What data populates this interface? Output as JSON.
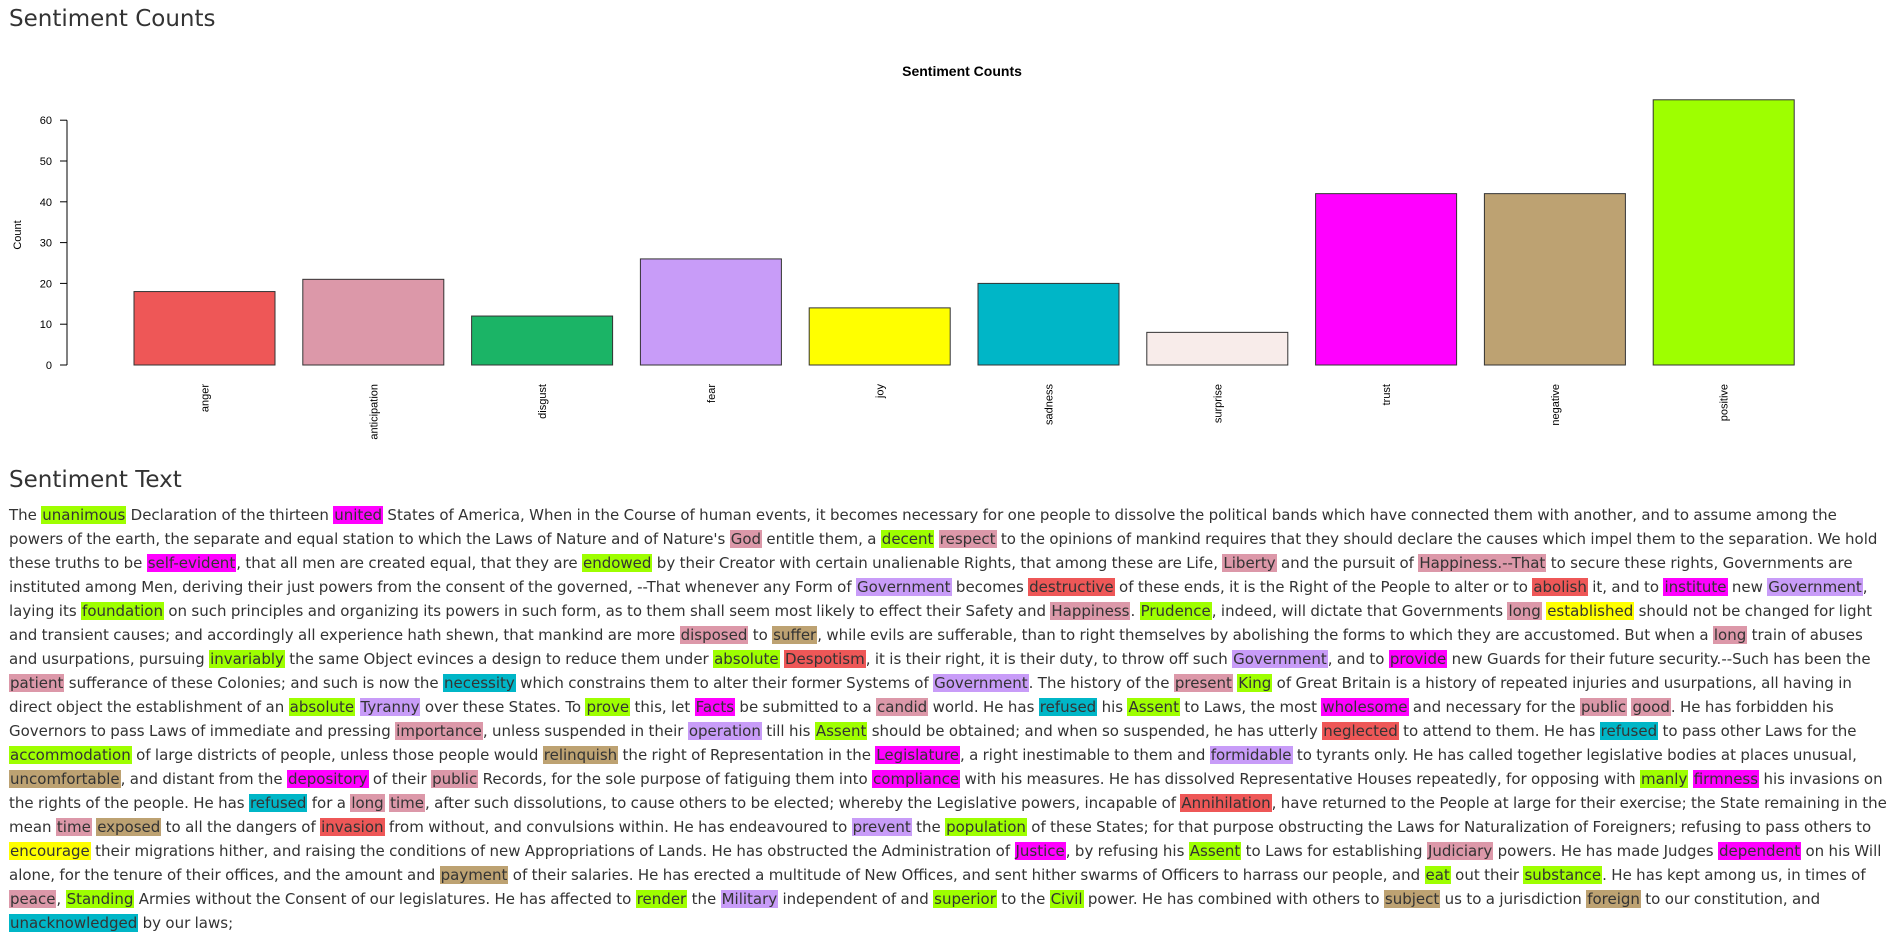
{
  "headings": {
    "counts": "Sentiment Counts",
    "text": "Sentiment Text"
  },
  "chart_data": {
    "type": "bar",
    "title": "Sentiment Counts",
    "xlabel": "",
    "ylabel": "Count",
    "ylim": [
      0,
      65
    ],
    "yticks": [
      0,
      10,
      20,
      30,
      40,
      50,
      60
    ],
    "categories": [
      "anger",
      "anticipation",
      "disgust",
      "fear",
      "joy",
      "sadness",
      "surprise",
      "trust",
      "negative",
      "positive"
    ],
    "values": [
      18,
      21,
      12,
      26,
      14,
      20,
      8,
      42,
      42,
      65
    ],
    "colors": [
      "#EE5757",
      "#DC98A9",
      "#1BB466",
      "#C89CF8",
      "#FFFF00",
      "#00B6C7",
      "#F8ECEA",
      "#FF00FF",
      "#BDA272",
      "#9EFF00"
    ],
    "grid": false,
    "legend": "none"
  },
  "sentiment_colors": {
    "anger": "#EE5757",
    "anticipation": "#DC98A9",
    "disgust": "#1BB466",
    "fear": "#C89CF8",
    "joy": "#FFFF00",
    "sadness": "#00B6C7",
    "surprise": "#F8ECEA",
    "trust": "#FF00FF",
    "negative": "#BDA272",
    "positive": "#9EFF00"
  },
  "text_tokens": [
    [
      "The ",
      ""
    ],
    [
      "unanimous",
      "positive"
    ],
    [
      " Declaration of the thirteen ",
      ""
    ],
    [
      "united",
      "trust"
    ],
    [
      " States of America, When in the Course of human events, it becomes necessary for one people to dissolve the political bands which have connected them with another, and to assume among the powers of the earth, the separate and equal station to which the Laws of Nature and of Nature's ",
      ""
    ],
    [
      "God",
      "anticipation"
    ],
    [
      " entitle them, a ",
      ""
    ],
    [
      "decent",
      "positive"
    ],
    [
      " ",
      ""
    ],
    [
      "respect",
      "anticipation"
    ],
    [
      " to the opinions of mankind requires that they should declare the causes which impel them to the separation. We hold these truths to be ",
      ""
    ],
    [
      "self-evident",
      "trust"
    ],
    [
      ", that all men are created equal, that they are ",
      ""
    ],
    [
      "endowed",
      "positive"
    ],
    [
      " by their Creator with certain unalienable Rights, that among these are Life, ",
      ""
    ],
    [
      "Liberty",
      "anticipation"
    ],
    [
      " and the pursuit of ",
      ""
    ],
    [
      "Happiness.--That",
      "anticipation"
    ],
    [
      " to secure these rights, Governments are instituted among Men, deriving their just powers from the consent of the governed, --That whenever any Form of ",
      ""
    ],
    [
      "Government",
      "fear"
    ],
    [
      " becomes ",
      ""
    ],
    [
      "destructive",
      "anger"
    ],
    [
      " of these ends, it is the Right of the People to alter or to ",
      ""
    ],
    [
      "abolish",
      "anger"
    ],
    [
      " it, and to ",
      ""
    ],
    [
      "institute",
      "trust"
    ],
    [
      " new ",
      ""
    ],
    [
      "Government",
      "fear"
    ],
    [
      ", laying its ",
      ""
    ],
    [
      "foundation",
      "positive"
    ],
    [
      " on such principles and organizing its powers in such form, as to them shall seem most likely to effect their Safety and ",
      ""
    ],
    [
      "Happiness",
      "anticipation"
    ],
    [
      ". ",
      ""
    ],
    [
      "Prudence",
      "positive"
    ],
    [
      ", indeed, will dictate that Governments ",
      ""
    ],
    [
      "long",
      "anticipation"
    ],
    [
      " ",
      ""
    ],
    [
      "established",
      "joy"
    ],
    [
      " should not be changed for light and transient causes; and accordingly all experience hath shewn, that mankind are more ",
      ""
    ],
    [
      "disposed",
      "anticipation"
    ],
    [
      " to ",
      ""
    ],
    [
      "suffer",
      "negative"
    ],
    [
      ", while evils are sufferable, than to right themselves by abolishing the forms to which they are accustomed. But when a ",
      ""
    ],
    [
      "long",
      "anticipation"
    ],
    [
      " train of abuses and usurpations, pursuing ",
      ""
    ],
    [
      "invariably",
      "positive"
    ],
    [
      " the same Object evinces a design to reduce them under ",
      ""
    ],
    [
      "absolute",
      "positive"
    ],
    [
      " ",
      ""
    ],
    [
      "Despotism",
      "anger"
    ],
    [
      ", it is their right, it is their duty, to throw off such ",
      ""
    ],
    [
      "Government",
      "fear"
    ],
    [
      ", and to ",
      ""
    ],
    [
      "provide",
      "trust"
    ],
    [
      " new Guards for their future security.--Such has been the ",
      ""
    ],
    [
      "patient",
      "anticipation"
    ],
    [
      " sufferance of these Colonies; and such is now the ",
      ""
    ],
    [
      "necessity",
      "sadness"
    ],
    [
      " which constrains them to alter their former Systems of ",
      ""
    ],
    [
      "Government",
      "fear"
    ],
    [
      ". The history of the ",
      ""
    ],
    [
      "present",
      "anticipation"
    ],
    [
      " ",
      ""
    ],
    [
      "King",
      "positive"
    ],
    [
      " of Great Britain is a history of repeated injuries and usurpations, all having in direct object the establishment of an ",
      ""
    ],
    [
      "absolute",
      "positive"
    ],
    [
      " ",
      ""
    ],
    [
      "Tyranny",
      "fear"
    ],
    [
      " over these States. To ",
      ""
    ],
    [
      "prove",
      "positive"
    ],
    [
      " this, let ",
      ""
    ],
    [
      "Facts",
      "trust"
    ],
    [
      " be submitted to a ",
      ""
    ],
    [
      "candid",
      "anticipation"
    ],
    [
      " world. He has ",
      ""
    ],
    [
      "refused",
      "sadness"
    ],
    [
      " his ",
      ""
    ],
    [
      "Assent",
      "positive"
    ],
    [
      " to Laws, the most ",
      ""
    ],
    [
      "wholesome",
      "trust"
    ],
    [
      " and necessary for the ",
      ""
    ],
    [
      "public",
      "anticipation"
    ],
    [
      " ",
      ""
    ],
    [
      "good",
      "anticipation"
    ],
    [
      ". He has forbidden his Governors to pass Laws of immediate and pressing ",
      ""
    ],
    [
      "importance",
      "anticipation"
    ],
    [
      ", unless suspended in their ",
      ""
    ],
    [
      "operation",
      "fear"
    ],
    [
      " till his ",
      ""
    ],
    [
      "Assent",
      "positive"
    ],
    [
      " should be obtained; and when so suspended, he has utterly ",
      ""
    ],
    [
      "neglected",
      "anger"
    ],
    [
      " to attend to them. He has ",
      ""
    ],
    [
      "refused",
      "sadness"
    ],
    [
      " to pass other Laws for the ",
      ""
    ],
    [
      "accommodation",
      "positive"
    ],
    [
      " of large districts of people, unless those people would ",
      ""
    ],
    [
      "relinquish",
      "negative"
    ],
    [
      " the right of Representation in the ",
      ""
    ],
    [
      "Legislature",
      "trust"
    ],
    [
      ", a right inestimable to them and ",
      ""
    ],
    [
      "formidable",
      "fear"
    ],
    [
      " to tyrants only. He has called together legislative bodies at places unusual, ",
      ""
    ],
    [
      "uncomfortable",
      "negative"
    ],
    [
      ", and distant from the ",
      ""
    ],
    [
      "depository",
      "trust"
    ],
    [
      " of their ",
      ""
    ],
    [
      "public",
      "anticipation"
    ],
    [
      " Records, for the sole purpose of fatiguing them into ",
      ""
    ],
    [
      "compliance",
      "trust"
    ],
    [
      " with his measures. He has dissolved Representative Houses repeatedly, for opposing with ",
      ""
    ],
    [
      "manly",
      "positive"
    ],
    [
      " ",
      ""
    ],
    [
      "firmness",
      "trust"
    ],
    [
      " his invasions on the rights of the people. He has ",
      ""
    ],
    [
      "refused",
      "sadness"
    ],
    [
      " for a ",
      ""
    ],
    [
      "long",
      "anticipation"
    ],
    [
      " ",
      ""
    ],
    [
      "time",
      "anticipation"
    ],
    [
      ", after such dissolutions, to cause others to be elected; whereby the Legislative powers, incapable of ",
      ""
    ],
    [
      "Annihilation",
      "anger"
    ],
    [
      ", have returned to the People at large for their exercise; the State remaining in the mean ",
      ""
    ],
    [
      "time",
      "anticipation"
    ],
    [
      " ",
      ""
    ],
    [
      "exposed",
      "negative"
    ],
    [
      " to all the dangers of ",
      ""
    ],
    [
      "invasion",
      "anger"
    ],
    [
      " from without, and convulsions within. He has endeavoured to ",
      ""
    ],
    [
      "prevent",
      "fear"
    ],
    [
      " the ",
      ""
    ],
    [
      "population",
      "positive"
    ],
    [
      " of these States; for that purpose obstructing the Laws for Naturalization of Foreigners; refusing to pass others to ",
      ""
    ],
    [
      "encourage",
      "joy"
    ],
    [
      " their migrations hither, and raising the conditions of new Appropriations of Lands. He has obstructed the Administration of ",
      ""
    ],
    [
      "Justice",
      "trust"
    ],
    [
      ", by refusing his ",
      ""
    ],
    [
      "Assent",
      "positive"
    ],
    [
      " to Laws for establishing ",
      ""
    ],
    [
      "Judiciary",
      "anticipation"
    ],
    [
      " powers. He has made Judges ",
      ""
    ],
    [
      "dependent",
      "trust"
    ],
    [
      " on his Will alone, for the tenure of their offices, and the amount and ",
      ""
    ],
    [
      "payment",
      "negative"
    ],
    [
      " of their salaries. He has erected a multitude of New Offices, and sent hither swarms of Officers to harrass our people, and ",
      ""
    ],
    [
      "eat",
      "positive"
    ],
    [
      " out their ",
      ""
    ],
    [
      "substance",
      "positive"
    ],
    [
      ". He has kept among us, in times of ",
      ""
    ],
    [
      "peace",
      "anticipation"
    ],
    [
      ", ",
      ""
    ],
    [
      "Standing",
      "positive"
    ],
    [
      " Armies without the Consent of our legislatures. He has affected to ",
      ""
    ],
    [
      "render",
      "positive"
    ],
    [
      " the ",
      ""
    ],
    [
      "Military",
      "fear"
    ],
    [
      " independent of and ",
      ""
    ],
    [
      "superior",
      "positive"
    ],
    [
      " to the ",
      ""
    ],
    [
      "Civil",
      "positive"
    ],
    [
      " power. He has combined with others to ",
      ""
    ],
    [
      "subject",
      "negative"
    ],
    [
      " us to a jurisdiction ",
      ""
    ],
    [
      "foreign",
      "negative"
    ],
    [
      " to our constitution, and ",
      ""
    ],
    [
      "unacknowledged",
      "sadness"
    ],
    [
      " by our laws;",
      ""
    ]
  ]
}
